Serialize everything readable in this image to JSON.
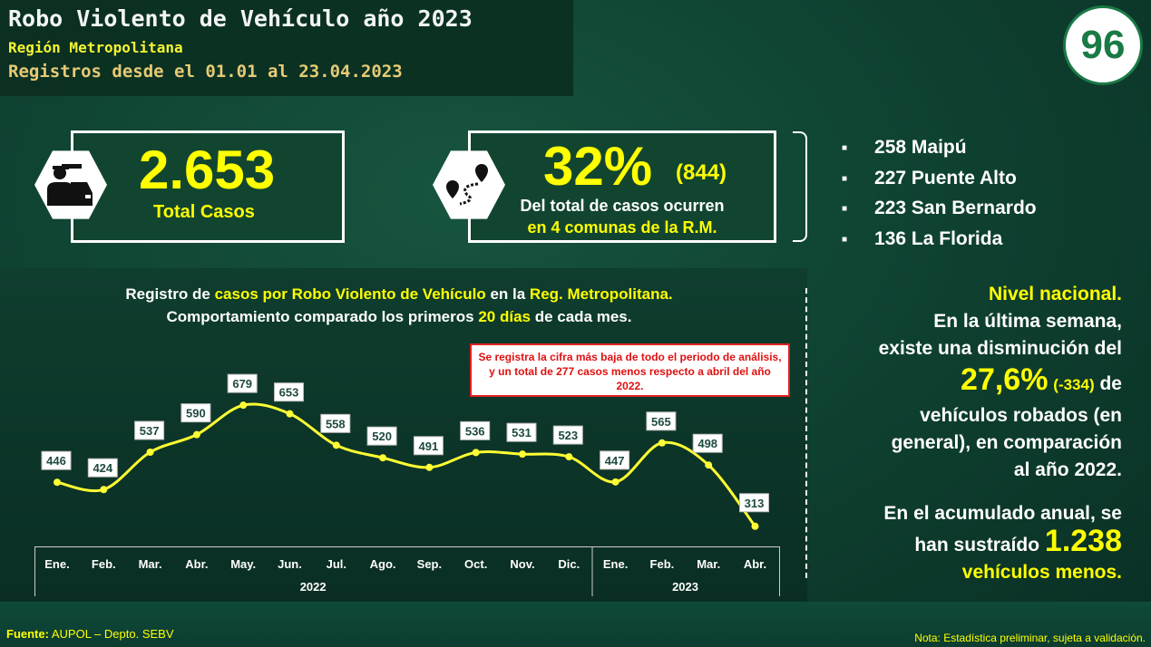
{
  "header": {
    "title": "Robo Violento de Vehículo año 2023",
    "region": "Región Metropolitana",
    "period": "Registros desde el 01.01 al 23.04.2023"
  },
  "logo": {
    "text": "96"
  },
  "kpi_total": {
    "value": "2.653",
    "label": "Total Casos",
    "icon": "thief-car-icon"
  },
  "kpi_percent": {
    "value": "32%",
    "count": "(844)",
    "line1": "Del total de casos ocurren",
    "line2": "en 4 comunas de la R.M.",
    "icon": "route-map-pin-icon"
  },
  "comunas": [
    "258 Maipú",
    "227 Puente Alto",
    "223 San Bernardo",
    "136 La Florida"
  ],
  "chart_title": {
    "p1": "Registro de ",
    "h1": "casos por Robo Violento de Vehículo",
    "p2": " en la ",
    "h2": "Reg. Metropolitana.",
    "p3": "Comportamiento comparado los primeros ",
    "h3": "20 días",
    "p4": " de cada mes."
  },
  "note": "Se registra la cifra más baja de todo el periodo de análisis, y un total de 277 casos menos respecto a abril del año 2022.",
  "right": {
    "h": "Nivel nacional.",
    "l1": "En la última semana,",
    "l2": "existe una disminución del",
    "pct": "27,6%",
    "pct_sub": "(-334)",
    "l3": "de",
    "l4": "vehículos robados (en",
    "l5": "general), en comparación",
    "l6": "al año 2022.",
    "l7": "En el acumulado anual, se",
    "l8": "han sustraído",
    "num": "1.238",
    "l9": "vehículos menos."
  },
  "footer": {
    "src_label": "Fuente:",
    "src": "AUPOL – Depto. SEBV",
    "nota": "Nota: Estadística preliminar, sujeta a validación."
  },
  "chart_data": {
    "type": "line",
    "categories": [
      "Ene.",
      "Feb.",
      "Mar.",
      "Abr.",
      "May.",
      "Jun.",
      "Jul.",
      "Ago.",
      "Sep.",
      "Oct.",
      "Nov.",
      "Dic.",
      "Ene.",
      "Feb.",
      "Mar.",
      "Abr."
    ],
    "groups": [
      {
        "label": "2022",
        "count": 12
      },
      {
        "label": "2023",
        "count": 4
      }
    ],
    "values": [
      446,
      424,
      537,
      590,
      679,
      653,
      558,
      520,
      491,
      536,
      531,
      523,
      447,
      565,
      498,
      313
    ],
    "line_color": "#ffff33",
    "data_labels": true
  }
}
